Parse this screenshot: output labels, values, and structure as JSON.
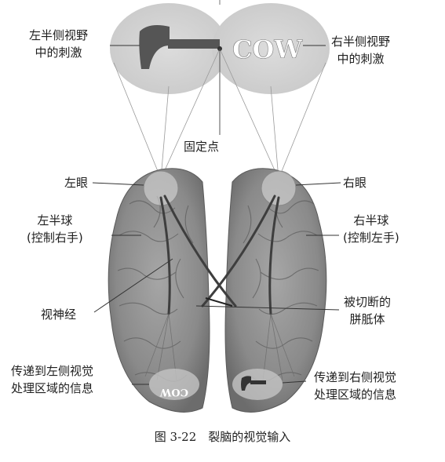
{
  "labels": {
    "left_field": [
      "左半侧视野",
      "中的刺激"
    ],
    "right_field": [
      "右半侧视野",
      "中的刺激"
    ],
    "fixation": "固定点",
    "left_eye": "左眼",
    "right_eye": "右眼",
    "left_hemisphere": [
      "左半球",
      "(控制右手)"
    ],
    "right_hemisphere": [
      "右半球",
      "(控制左手)"
    ],
    "optic_nerve": "视神经",
    "corpus_callosum": [
      "被切断的",
      "胼胝体"
    ],
    "left_visual_info": [
      "传递到左侧视觉",
      "处理区域的信息"
    ],
    "right_visual_info": [
      "传递到右侧视觉",
      "处理区域的信息"
    ]
  },
  "stimuli": {
    "word": "COW",
    "word_mirrored": "COW",
    "left_object": "hammer-icon"
  },
  "caption": "图 3-22　裂脑的视觉输入",
  "colors": {
    "field_fill": "#d3d3d3",
    "brain_fill": "#8f8f8f",
    "brain_dark": "#555555",
    "text": "#1f1f1f"
  }
}
